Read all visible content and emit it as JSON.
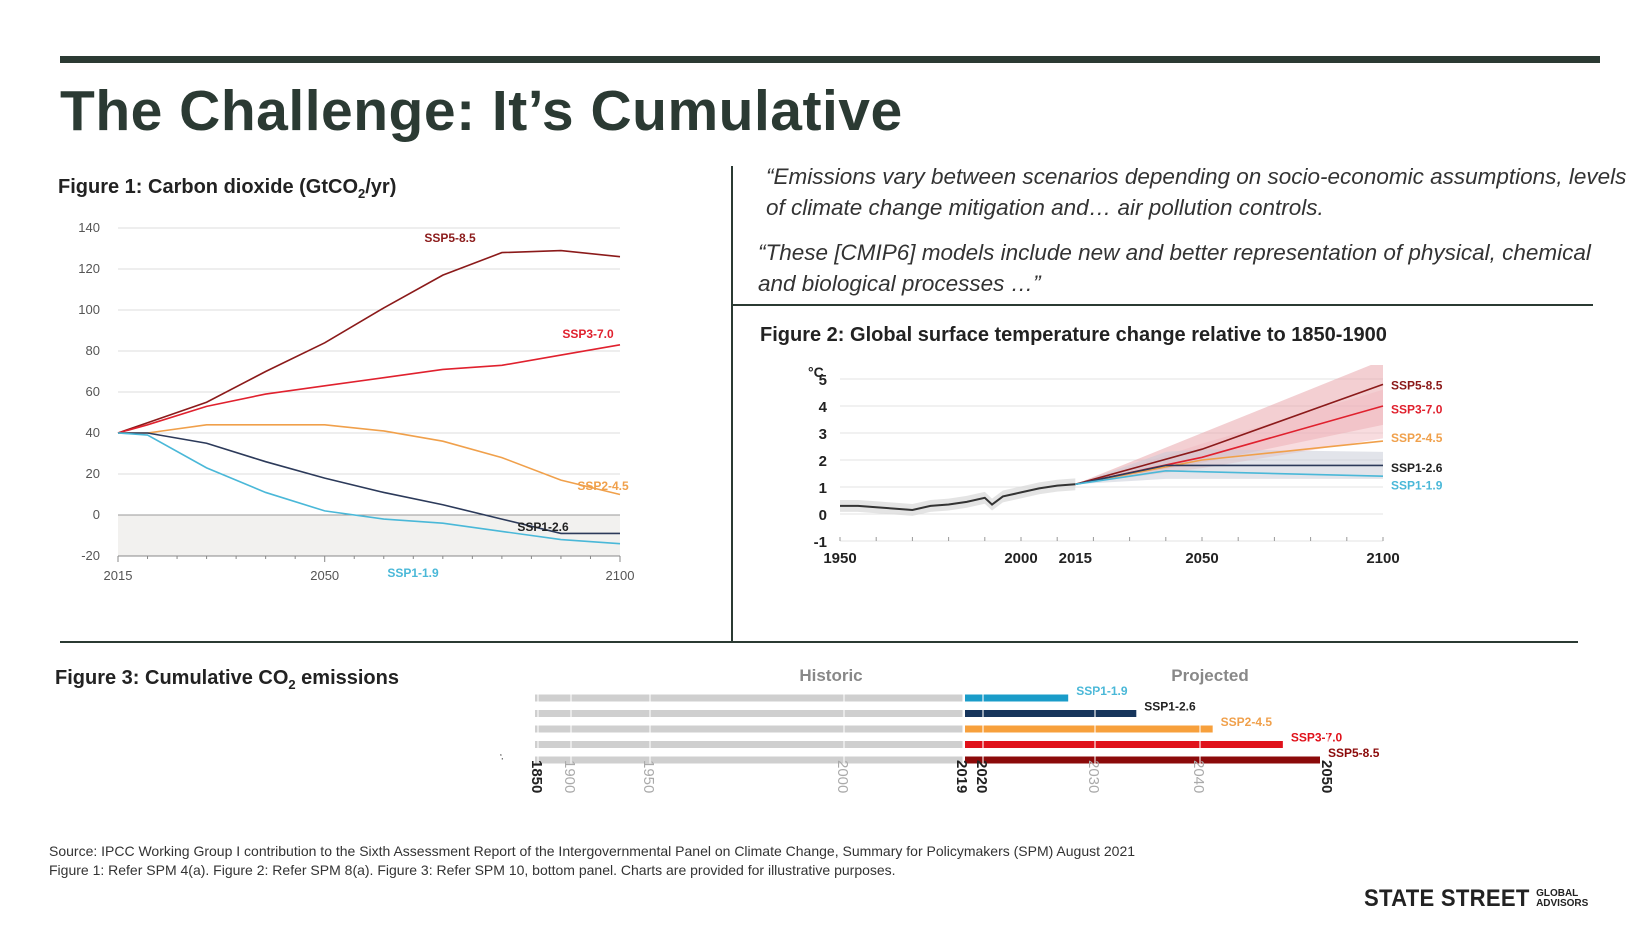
{
  "page": {
    "title": "The Challenge: It’s Cumulative",
    "quote1": "“Emissions vary between scenarios depending on socio-economic assumptions, levels of climate change mitigation and… air pollution controls.",
    "quote2": "“These [CMIP6] models include new and better representation of physical, chemical and biological processes …”",
    "source_line1": "Source: IPCC Working Group I contribution to the Sixth Assessment Report of the Intergovernmental Panel on Climate Change, Summary for Policymakers (SPM) August 2021",
    "source_line2": "Figure 1: Refer SPM 4(a).  Figure 2: Refer SPM 8(a). Figure 3: Refer SPM 10, bottom panel. Charts are provided for illustrative purposes.",
    "logo_main": "STATE STREET",
    "logo_sub1": "GLOBAL",
    "logo_sub2": "ADVISORS"
  },
  "chart_data": [
    {
      "id": "fig1",
      "type": "line",
      "title_pre": "Figure 1: Carbon dioxide (GtCO",
      "title_sub": "2",
      "title_post": "/yr)",
      "x_ticks": [
        2015,
        2050,
        2100
      ],
      "y_ticks": [
        140,
        120,
        100,
        80,
        60,
        40,
        20,
        0,
        -20
      ],
      "xlim": [
        2015,
        2100
      ],
      "ylim": [
        -20,
        140
      ],
      "series": [
        {
          "name": "SSP5-8.5",
          "color": "#8b1a1a",
          "x": [
            2015,
            2020,
            2030,
            2040,
            2050,
            2060,
            2070,
            2080,
            2090,
            2100
          ],
          "y": [
            40,
            45,
            55,
            70,
            84,
            101,
            117,
            128,
            129,
            126
          ]
        },
        {
          "name": "SSP3-7.0",
          "color": "#e0212e",
          "x": [
            2015,
            2020,
            2030,
            2040,
            2050,
            2060,
            2070,
            2080,
            2090,
            2100
          ],
          "y": [
            40,
            44,
            53,
            59,
            63,
            67,
            71,
            73,
            78,
            83
          ]
        },
        {
          "name": "SSP2-4.5",
          "color": "#f0a04b",
          "x": [
            2015,
            2020,
            2030,
            2040,
            2050,
            2060,
            2070,
            2080,
            2090,
            2100
          ],
          "y": [
            40,
            40,
            44,
            44,
            44,
            41,
            36,
            28,
            17,
            10
          ]
        },
        {
          "name": "SSP1-2.6",
          "color": "#2c3a5a",
          "x": [
            2015,
            2020,
            2030,
            2040,
            2050,
            2060,
            2070,
            2080,
            2090,
            2100
          ],
          "y": [
            40,
            40,
            35,
            26,
            18,
            11,
            5,
            -2,
            -9,
            -9
          ]
        },
        {
          "name": "SSP1-1.9",
          "color": "#4ab8d8",
          "x": [
            2015,
            2020,
            2030,
            2040,
            2050,
            2060,
            2070,
            2080,
            2090,
            2100
          ],
          "y": [
            40,
            39,
            23,
            11,
            2,
            -2,
            -4,
            -8,
            -12,
            -14
          ]
        }
      ]
    },
    {
      "id": "fig2",
      "type": "line",
      "title": "Figure 2: Global surface temperature change relative to 1850-1900",
      "unit": "°C",
      "x_ticks": [
        1950,
        2000,
        2015,
        2050,
        2100
      ],
      "y_ticks": [
        5,
        4,
        3,
        2,
        1,
        0,
        -1
      ],
      "xlim": [
        1950,
        2100
      ],
      "ylim": [
        -1,
        5
      ],
      "historical": {
        "color": "#333333",
        "x": [
          1950,
          1955,
          1960,
          1965,
          1970,
          1975,
          1980,
          1985,
          1990,
          1992,
          1995,
          2000,
          2005,
          2010,
          2015
        ],
        "y": [
          0.3,
          0.3,
          0.25,
          0.2,
          0.15,
          0.3,
          0.35,
          0.45,
          0.6,
          0.35,
          0.65,
          0.8,
          0.95,
          1.05,
          1.1
        ]
      },
      "series": [
        {
          "name": "SSP5-8.5",
          "color": "#8b1a1a",
          "x": [
            2015,
            2050,
            2100
          ],
          "y": [
            1.1,
            2.4,
            4.8
          ],
          "band_low": [
            1.1,
            1.9,
            3.3
          ],
          "band_high": [
            1.1,
            3.0,
            5.7
          ]
        },
        {
          "name": "SSP3-7.0",
          "color": "#e0212e",
          "x": [
            2015,
            2050,
            2100
          ],
          "y": [
            1.1,
            2.1,
            4.0
          ],
          "band_low": [
            1.1,
            1.7,
            2.8
          ],
          "band_high": [
            1.1,
            2.6,
            4.6
          ]
        },
        {
          "name": "SSP2-4.5",
          "color": "#f0a04b",
          "x": [
            2015,
            2050,
            2100
          ],
          "y": [
            1.1,
            2.0,
            2.7
          ]
        },
        {
          "name": "SSP1-2.6",
          "color": "#2c3a5a",
          "x": [
            2015,
            2040,
            2050,
            2100
          ],
          "y": [
            1.1,
            1.8,
            1.8,
            1.8
          ],
          "band_low": [
            1.1,
            1.3,
            1.3,
            1.3
          ],
          "band_high": [
            1.1,
            2.3,
            2.4,
            2.3
          ]
        },
        {
          "name": "SSP1-1.9",
          "color": "#4ab8d8",
          "x": [
            2015,
            2040,
            2100
          ],
          "y": [
            1.1,
            1.6,
            1.4
          ]
        }
      ]
    },
    {
      "id": "fig3",
      "type": "bar",
      "title_pre": "Figure 3: Cumulative CO",
      "title_sub": "2",
      "title_post": " emissions",
      "historic_label": "Historic",
      "projected_label": "Projected",
      "time_label": "time",
      "time_ticks": [
        {
          "label": "1850",
          "bold": true
        },
        {
          "label": "1900",
          "bold": false
        },
        {
          "label": "1950",
          "bold": false
        },
        {
          "label": "2000",
          "bold": false
        },
        {
          "label": "2019",
          "bold": true
        },
        {
          "label": "2020",
          "bold": true
        },
        {
          "label": "2030",
          "bold": false
        },
        {
          "label": "2040",
          "bold": false
        },
        {
          "label": "2050",
          "bold": true
        }
      ],
      "historic_start_year": 1850,
      "historic_end_year": 2019,
      "series": [
        {
          "name": "SSP1-1.9",
          "color": "#1a9cc9",
          "label_color": "#4ab8d8",
          "projected_to_2050": 500
        },
        {
          "name": "SSP1-2.6",
          "color": "#16355c",
          "label_color": "#222222",
          "projected_to_2050": 830
        },
        {
          "name": "SSP2-4.5",
          "color": "#f7a03c",
          "label_color": "#f0a04b",
          "projected_to_2050": 1200
        },
        {
          "name": "SSP3-7.0",
          "color": "#e0121b",
          "label_color": "#e0121b",
          "projected_to_2050": 1540
        },
        {
          "name": "SSP5-8.5",
          "color": "#8b0a0a",
          "label_color": "#8b0a0a",
          "projected_to_2050": 1720
        }
      ]
    }
  ]
}
